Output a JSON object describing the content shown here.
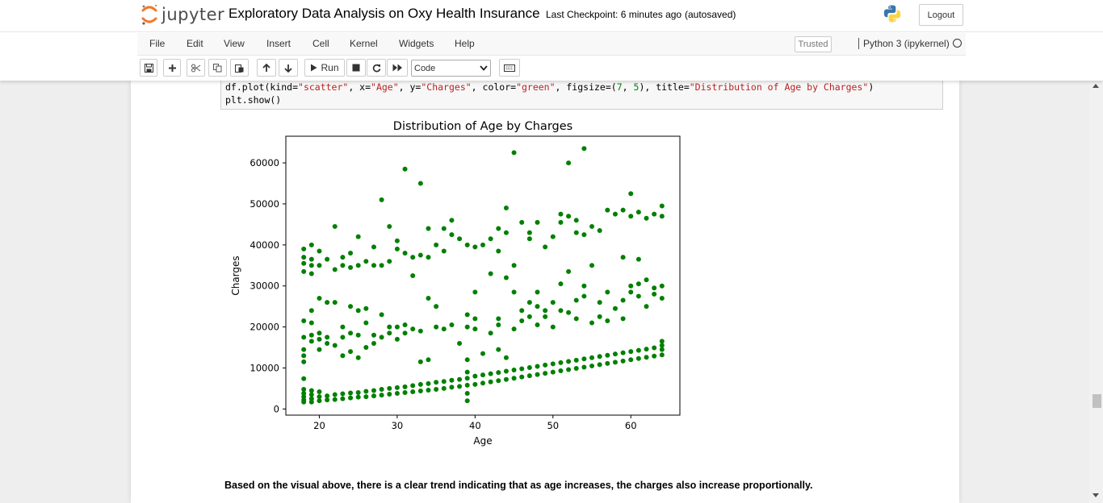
{
  "header": {
    "logo_text": "jupyter",
    "notebook_name": "Exploratory Data Analysis on Oxy Health Insurance",
    "checkpoint": "Last Checkpoint: 6 minutes ago",
    "autosave": "(autosaved)",
    "logout_label": "Logout"
  },
  "menubar": {
    "items": [
      "File",
      "Edit",
      "View",
      "Insert",
      "Cell",
      "Kernel",
      "Widgets",
      "Help"
    ],
    "trusted_label": "Trusted",
    "kernel_label": "Python 3 (ipykernel)"
  },
  "toolbar": {
    "run_label": "Run",
    "cell_type": "Code",
    "icons": [
      "save-icon",
      "plus-icon",
      "cut-icon",
      "copy-icon",
      "paste-icon",
      "arrow-up-icon",
      "arrow-down-icon",
      "run-icon",
      "stop-icon",
      "restart-icon",
      "fast-forward-icon",
      "keyboard-icon"
    ]
  },
  "code_cell": {
    "line1_parts": [
      "df.plot(kind=",
      "\"scatter\"",
      ", x=",
      "\"Age\"",
      ", y=",
      "\"Charges\"",
      ", color=",
      "\"green\"",
      ", figsize=(",
      "7",
      ", ",
      "5",
      "), title=",
      "\"Distribution of Age by Charges\"",
      ")"
    ],
    "line2": "plt.show()"
  },
  "markdown": {
    "text": "Based on the visual above, there is a clear trend indicating that as age increases, the charges also increase proportionally."
  },
  "chart_data": {
    "type": "scatter",
    "title": "Distribution of Age by Charges",
    "xlabel": "Age",
    "ylabel": "Charges",
    "xlim": [
      15.7,
      66.3
    ],
    "ylim": [
      -1500,
      66500
    ],
    "xticks": [
      20,
      30,
      40,
      50,
      60
    ],
    "yticks": [
      0,
      10000,
      20000,
      30000,
      40000,
      50000,
      60000
    ],
    "color": "#008000",
    "grid": false,
    "points": [
      [
        18,
        1700
      ],
      [
        18,
        2200
      ],
      [
        18,
        3000
      ],
      [
        18,
        3800
      ],
      [
        18,
        4800
      ],
      [
        18,
        7400
      ],
      [
        18,
        11500
      ],
      [
        18,
        13000
      ],
      [
        18,
        14500
      ],
      [
        18,
        17500
      ],
      [
        18,
        21500
      ],
      [
        18,
        33500
      ],
      [
        18,
        35500
      ],
      [
        18,
        37000
      ],
      [
        18,
        39000
      ],
      [
        19,
        1700
      ],
      [
        19,
        2500
      ],
      [
        19,
        3500
      ],
      [
        19,
        4500
      ],
      [
        19,
        16500
      ],
      [
        19,
        18000
      ],
      [
        19,
        21000
      ],
      [
        19,
        24000
      ],
      [
        19,
        33000
      ],
      [
        19,
        35000
      ],
      [
        19,
        36500
      ],
      [
        19,
        40000
      ],
      [
        20,
        2000
      ],
      [
        20,
        3000
      ],
      [
        20,
        4200
      ],
      [
        20,
        14500
      ],
      [
        20,
        17000
      ],
      [
        20,
        18500
      ],
      [
        20,
        27000
      ],
      [
        20,
        35000
      ],
      [
        20,
        38500
      ],
      [
        21,
        2200
      ],
      [
        21,
        3200
      ],
      [
        21,
        16000
      ],
      [
        21,
        17500
      ],
      [
        21,
        26000
      ],
      [
        21,
        36500
      ],
      [
        22,
        2300
      ],
      [
        22,
        3500
      ],
      [
        22,
        15500
      ],
      [
        22,
        26000
      ],
      [
        22,
        44500
      ],
      [
        22,
        34000
      ],
      [
        23,
        2500
      ],
      [
        23,
        3700
      ],
      [
        23,
        13000
      ],
      [
        23,
        17500
      ],
      [
        23,
        20000
      ],
      [
        23,
        35000
      ],
      [
        23,
        37000
      ],
      [
        24,
        2700
      ],
      [
        24,
        3900
      ],
      [
        24,
        14000
      ],
      [
        24,
        18500
      ],
      [
        24,
        25000
      ],
      [
        24,
        34500
      ],
      [
        24,
        38000
      ],
      [
        25,
        2900
      ],
      [
        25,
        4000
      ],
      [
        25,
        12500
      ],
      [
        25,
        18000
      ],
      [
        25,
        24000
      ],
      [
        25,
        42000
      ],
      [
        25,
        35000
      ],
      [
        26,
        3000
      ],
      [
        26,
        4300
      ],
      [
        26,
        15000
      ],
      [
        26,
        21000
      ],
      [
        26,
        24500
      ],
      [
        26,
        36000
      ],
      [
        27,
        3200
      ],
      [
        27,
        4500
      ],
      [
        27,
        16000
      ],
      [
        27,
        18000
      ],
      [
        27,
        35000
      ],
      [
        27,
        39500
      ],
      [
        28,
        3400
      ],
      [
        28,
        4800
      ],
      [
        28,
        17500
      ],
      [
        28,
        23000
      ],
      [
        28,
        51000
      ],
      [
        28,
        35000
      ],
      [
        29,
        3600
      ],
      [
        29,
        5000
      ],
      [
        29,
        18500
      ],
      [
        29,
        20000
      ],
      [
        29,
        44500
      ],
      [
        29,
        36000
      ],
      [
        30,
        3800
      ],
      [
        30,
        5200
      ],
      [
        30,
        17000
      ],
      [
        30,
        20000
      ],
      [
        30,
        39000
      ],
      [
        30,
        41000
      ],
      [
        31,
        4000
      ],
      [
        31,
        5400
      ],
      [
        31,
        18500
      ],
      [
        31,
        20500
      ],
      [
        31,
        58500
      ],
      [
        31,
        38000
      ],
      [
        32,
        4200
      ],
      [
        32,
        5700
      ],
      [
        32,
        19500
      ],
      [
        32,
        32500
      ],
      [
        32,
        37000
      ],
      [
        33,
        4400
      ],
      [
        33,
        6000
      ],
      [
        33,
        11500
      ],
      [
        33,
        19000
      ],
      [
        33,
        37500
      ],
      [
        33,
        55000
      ],
      [
        34,
        4600
      ],
      [
        34,
        6200
      ],
      [
        34,
        12000
      ],
      [
        34,
        27000
      ],
      [
        34,
        37000
      ],
      [
        34,
        44000
      ],
      [
        35,
        4800
      ],
      [
        35,
        6500
      ],
      [
        35,
        20000
      ],
      [
        35,
        25000
      ],
      [
        35,
        40000
      ],
      [
        36,
        5000
      ],
      [
        36,
        6700
      ],
      [
        36,
        19500
      ],
      [
        36,
        38500
      ],
      [
        36,
        44000
      ],
      [
        37,
        5300
      ],
      [
        37,
        7000
      ],
      [
        37,
        20500
      ],
      [
        37,
        42500
      ],
      [
        37,
        46000
      ],
      [
        38,
        5500
      ],
      [
        38,
        7200
      ],
      [
        38,
        16000
      ],
      [
        38,
        41500
      ],
      [
        39,
        2000
      ],
      [
        39,
        3800
      ],
      [
        39,
        5800
      ],
      [
        39,
        7500
      ],
      [
        39,
        9000
      ],
      [
        39,
        12000
      ],
      [
        39,
        20000
      ],
      [
        39,
        23000
      ],
      [
        39,
        40000
      ],
      [
        40,
        6000
      ],
      [
        40,
        8000
      ],
      [
        40,
        19500
      ],
      [
        40,
        22000
      ],
      [
        40,
        28500
      ],
      [
        40,
        39500
      ],
      [
        41,
        6300
      ],
      [
        41,
        8300
      ],
      [
        41,
        13500
      ],
      [
        41,
        40000
      ],
      [
        42,
        6600
      ],
      [
        42,
        8600
      ],
      [
        42,
        18500
      ],
      [
        42,
        33000
      ],
      [
        42,
        41500
      ],
      [
        43,
        6900
      ],
      [
        43,
        8900
      ],
      [
        43,
        14500
      ],
      [
        43,
        20500
      ],
      [
        43,
        22000
      ],
      [
        43,
        38500
      ],
      [
        43,
        44000
      ],
      [
        44,
        7200
      ],
      [
        44,
        9200
      ],
      [
        44,
        12500
      ],
      [
        44,
        32000
      ],
      [
        44,
        43000
      ],
      [
        44,
        49000
      ],
      [
        45,
        7500
      ],
      [
        45,
        9500
      ],
      [
        45,
        19500
      ],
      [
        45,
        28500
      ],
      [
        45,
        35000
      ],
      [
        45,
        62500
      ],
      [
        46,
        7800
      ],
      [
        46,
        9800
      ],
      [
        46,
        21500
      ],
      [
        46,
        24000
      ],
      [
        46,
        45500
      ],
      [
        47,
        8100
      ],
      [
        47,
        10100
      ],
      [
        47,
        22500
      ],
      [
        47,
        26000
      ],
      [
        47,
        41500
      ],
      [
        47,
        43000
      ],
      [
        48,
        8400
      ],
      [
        48,
        10400
      ],
      [
        48,
        20500
      ],
      [
        48,
        25000
      ],
      [
        48,
        28500
      ],
      [
        48,
        45500
      ],
      [
        49,
        8700
      ],
      [
        49,
        10700
      ],
      [
        49,
        22500
      ],
      [
        49,
        24000
      ],
      [
        49,
        39500
      ],
      [
        50,
        9000
      ],
      [
        50,
        11000
      ],
      [
        50,
        20000
      ],
      [
        50,
        26000
      ],
      [
        50,
        42000
      ],
      [
        51,
        9300
      ],
      [
        51,
        11300
      ],
      [
        51,
        24000
      ],
      [
        51,
        30500
      ],
      [
        51,
        45500
      ],
      [
        51,
        47500
      ],
      [
        52,
        9600
      ],
      [
        52,
        11600
      ],
      [
        52,
        23500
      ],
      [
        52,
        33500
      ],
      [
        52,
        47000
      ],
      [
        52,
        60000
      ],
      [
        53,
        9900
      ],
      [
        53,
        11900
      ],
      [
        53,
        22000
      ],
      [
        53,
        26500
      ],
      [
        53,
        43000
      ],
      [
        53,
        46000
      ],
      [
        54,
        10200
      ],
      [
        54,
        12200
      ],
      [
        54,
        27500
      ],
      [
        54,
        30000
      ],
      [
        54,
        42500
      ],
      [
        54,
        63500
      ],
      [
        55,
        10500
      ],
      [
        55,
        12500
      ],
      [
        55,
        21000
      ],
      [
        55,
        35000
      ],
      [
        55,
        44500
      ],
      [
        56,
        10800
      ],
      [
        56,
        12800
      ],
      [
        56,
        22500
      ],
      [
        56,
        26000
      ],
      [
        56,
        43500
      ],
      [
        57,
        11100
      ],
      [
        57,
        13100
      ],
      [
        57,
        21500
      ],
      [
        57,
        28500
      ],
      [
        57,
        48500
      ],
      [
        58,
        11400
      ],
      [
        58,
        13400
      ],
      [
        58,
        24500
      ],
      [
        58,
        47500
      ],
      [
        59,
        11700
      ],
      [
        59,
        13700
      ],
      [
        59,
        22000
      ],
      [
        59,
        26500
      ],
      [
        59,
        37000
      ],
      [
        59,
        48500
      ],
      [
        60,
        12000
      ],
      [
        60,
        14000
      ],
      [
        60,
        28500
      ],
      [
        60,
        30000
      ],
      [
        60,
        47000
      ],
      [
        60,
        52500
      ],
      [
        61,
        12300
      ],
      [
        61,
        14300
      ],
      [
        61,
        27500
      ],
      [
        61,
        30500
      ],
      [
        61,
        36500
      ],
      [
        61,
        48000
      ],
      [
        62,
        12600
      ],
      [
        62,
        14600
      ],
      [
        62,
        25000
      ],
      [
        62,
        31500
      ],
      [
        62,
        46500
      ],
      [
        63,
        12900
      ],
      [
        63,
        14900
      ],
      [
        63,
        28000
      ],
      [
        63,
        29500
      ],
      [
        63,
        47500
      ],
      [
        64,
        13200
      ],
      [
        64,
        14500
      ],
      [
        64,
        15500
      ],
      [
        64,
        16500
      ],
      [
        64,
        27000
      ],
      [
        64,
        30000
      ],
      [
        64,
        47000
      ],
      [
        64,
        49500
      ]
    ]
  }
}
